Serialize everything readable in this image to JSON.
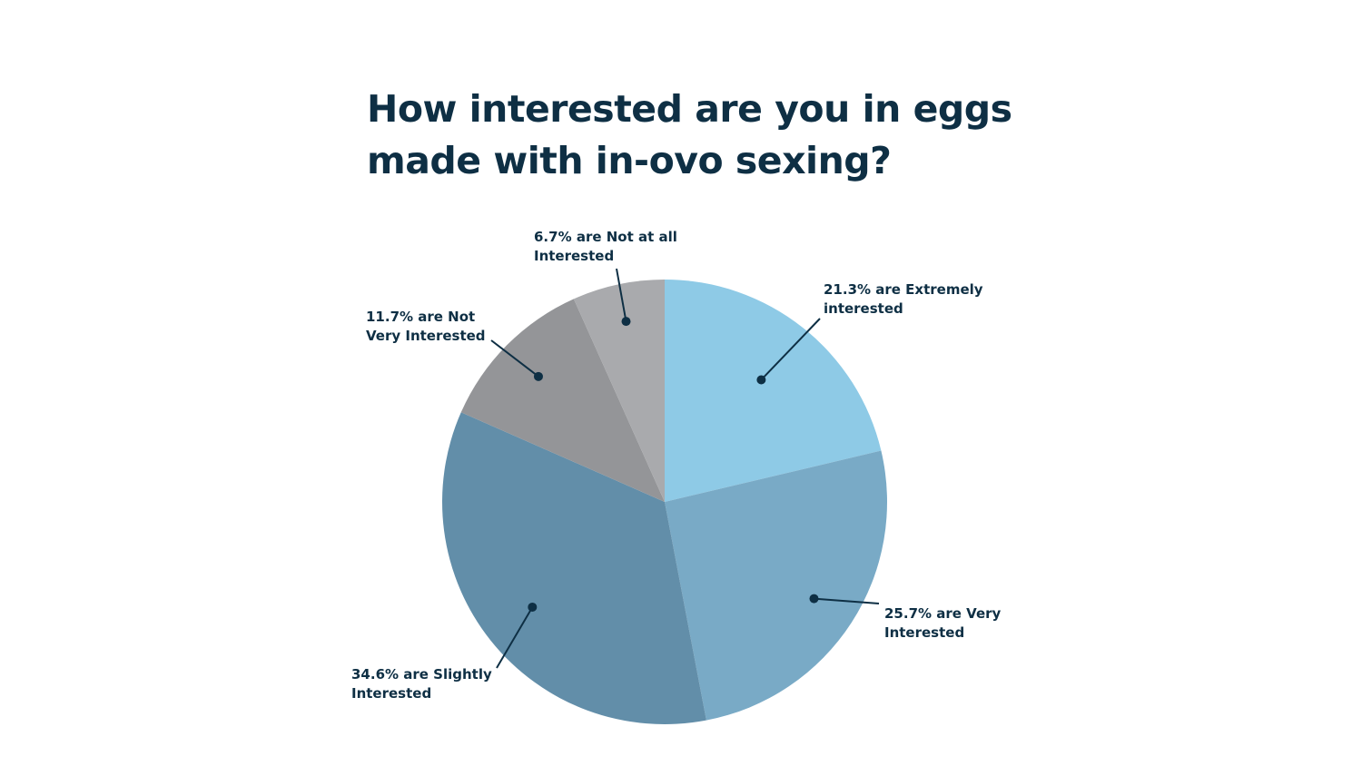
{
  "title": "How interested are you in eggs made with in-ovo sexing?",
  "chart_data": {
    "type": "pie",
    "title": "How interested are you in eggs made with in-ovo sexing?",
    "start_angle": "12 o'clock",
    "direction": "clockwise",
    "slices": [
      {
        "name": "Extremely interested",
        "value": 21.3,
        "color": "#8ecae6",
        "label_lines": [
          "21.3% are Extremely",
          "interested"
        ]
      },
      {
        "name": "Very Interested",
        "value": 25.7,
        "color": "#79aac6",
        "label_lines": [
          "25.7% are Very",
          "Interested"
        ]
      },
      {
        "name": "Slightly Interested",
        "value": 34.6,
        "color": "#628ea9",
        "label_lines": [
          "34.6% are Slightly",
          "Interested"
        ]
      },
      {
        "name": "Not Very Interested",
        "value": 11.7,
        "color": "#949598",
        "label_lines": [
          "11.7% are Not",
          "Very Interested"
        ]
      },
      {
        "name": "Not at all Interested",
        "value": 6.7,
        "color": "#a9aaad",
        "label_lines": [
          "6.7% are Not at all",
          "Interested"
        ]
      }
    ]
  }
}
